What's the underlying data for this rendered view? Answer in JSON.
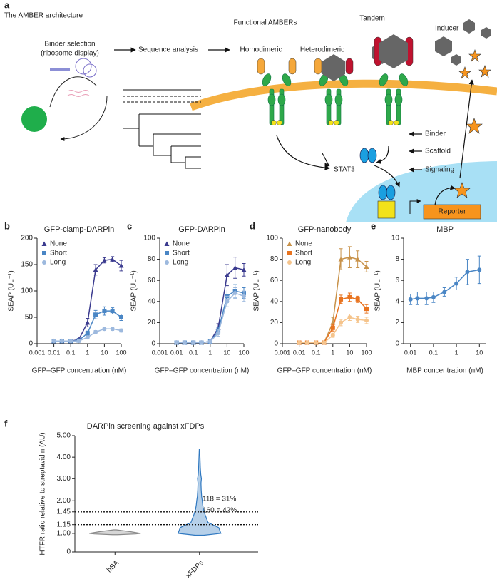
{
  "figure_a": {
    "label": "a",
    "title": "The AMBER architecture",
    "steps": [
      "Binder selection",
      "(ribosome display)",
      "Sequence analysis"
    ],
    "functional": "Functional AMBERs",
    "types": [
      "Homodimeric",
      "Heterodimeric",
      "Tandem"
    ],
    "inducer": "Inducer",
    "parts": [
      "Binder",
      "Scaffold",
      "Signaling"
    ],
    "stat3": "STAT3",
    "reporter": "Reporter"
  },
  "chart_data": [
    {
      "type": "line",
      "panel": "b",
      "title": "GFP-clamp-DARPin",
      "x_label": "GFP–GFP concentration (nM)",
      "y_label": "SEAP (UL⁻¹)",
      "x": [
        0.01,
        0.03,
        0.1,
        0.3,
        1,
        3,
        10,
        30,
        100
      ],
      "xscale": "log",
      "xlim": [
        0.001,
        100
      ],
      "xticks": [
        0.001,
        0.01,
        0.1,
        1,
        10,
        100
      ],
      "ylim": [
        0,
        200
      ],
      "yticks": [
        0,
        50,
        100,
        150,
        200
      ],
      "legend": "upper left",
      "series": [
        {
          "name": "None",
          "color": "#3b3b8f",
          "marker": "triangle",
          "values": [
            5,
            5,
            5,
            8,
            40,
            140,
            158,
            160,
            148
          ],
          "errors": [
            1,
            1,
            1,
            2,
            8,
            10,
            5,
            5,
            10
          ]
        },
        {
          "name": "Short",
          "color": "#4a86c5",
          "marker": "square",
          "values": [
            5,
            5,
            5,
            6,
            20,
            55,
            62,
            62,
            50
          ],
          "errors": [
            1,
            1,
            1,
            1,
            4,
            8,
            8,
            6,
            6
          ]
        },
        {
          "name": "Long",
          "color": "#9db9de",
          "marker": "circle",
          "values": [
            5,
            5,
            5,
            5,
            12,
            22,
            28,
            28,
            25
          ],
          "errors": [
            1,
            1,
            1,
            1,
            2,
            3,
            3,
            3,
            3
          ]
        }
      ]
    },
    {
      "type": "line",
      "panel": "c",
      "title": "GFP-DARPin",
      "x_label": "GFP–GFP concentration (nM)",
      "y_label": "SEAP (UL⁻¹)",
      "x": [
        0.01,
        0.03,
        0.1,
        0.3,
        1,
        3,
        10,
        30,
        100
      ],
      "xscale": "log",
      "xlim": [
        0.001,
        100
      ],
      "xticks": [
        0.001,
        0.01,
        0.1,
        1,
        10,
        100
      ],
      "ylim": [
        0,
        100
      ],
      "yticks": [
        0,
        20,
        40,
        60,
        80,
        100
      ],
      "legend": "upper left",
      "series": [
        {
          "name": "None",
          "color": "#3b3b8f",
          "marker": "triangle",
          "values": [
            1,
            1,
            1,
            1,
            2,
            15,
            65,
            72,
            70
          ],
          "errors": [
            0.5,
            0.5,
            0.5,
            0.5,
            1,
            4,
            10,
            10,
            6
          ]
        },
        {
          "name": "Short",
          "color": "#4a86c5",
          "marker": "square",
          "values": [
            1,
            1,
            1,
            1,
            2,
            12,
            45,
            50,
            48
          ],
          "errors": [
            0.5,
            0.5,
            0.5,
            0.5,
            1,
            3,
            6,
            6,
            5
          ]
        },
        {
          "name": "Long",
          "color": "#9db9de",
          "marker": "circle",
          "values": [
            1,
            1,
            1,
            1,
            2,
            10,
            40,
            48,
            45
          ],
          "errors": [
            0.5,
            0.5,
            0.5,
            0.5,
            1,
            3,
            5,
            5,
            5
          ]
        }
      ]
    },
    {
      "type": "line",
      "panel": "d",
      "title": "GFP-nanobody",
      "x_label": "GFP–GFP concentration (nM)",
      "y_label": "SEAP (UL⁻¹)",
      "x": [
        0.01,
        0.03,
        0.1,
        0.3,
        1,
        3,
        10,
        30,
        100
      ],
      "xscale": "log",
      "xlim": [
        0.001,
        100
      ],
      "xticks": [
        0.001,
        0.01,
        0.1,
        1,
        10,
        100
      ],
      "ylim": [
        0,
        100
      ],
      "yticks": [
        0,
        20,
        40,
        60,
        80,
        100
      ],
      "legend": "upper left",
      "series": [
        {
          "name": "None",
          "color": "#c8924a",
          "marker": "triangle",
          "values": [
            1,
            1,
            1,
            1,
            20,
            80,
            82,
            80,
            73
          ],
          "errors": [
            0.5,
            0.5,
            0.5,
            0.5,
            5,
            10,
            10,
            8,
            5
          ]
        },
        {
          "name": "Short",
          "color": "#e8731f",
          "marker": "square",
          "values": [
            1,
            1,
            1,
            1,
            15,
            42,
            44,
            42,
            33
          ],
          "errors": [
            0.5,
            0.5,
            0.5,
            0.5,
            3,
            4,
            4,
            3,
            4
          ]
        },
        {
          "name": "Long",
          "color": "#f5c48c",
          "marker": "circle",
          "values": [
            1,
            1,
            1,
            1,
            8,
            20,
            25,
            23,
            22
          ],
          "errors": [
            0.5,
            0.5,
            0.5,
            0.5,
            2,
            3,
            3,
            3,
            3
          ]
        }
      ]
    },
    {
      "type": "line",
      "panel": "e",
      "title": "MBP",
      "x_label": "MBP concentration (nM)",
      "y_label": "SEAP (UL⁻¹)",
      "x": [
        0.01,
        0.02,
        0.05,
        0.1,
        0.3,
        1,
        3,
        10
      ],
      "xscale": "log",
      "xlim": [
        0.005,
        20
      ],
      "xticks": [
        0.01,
        0.1,
        1,
        10
      ],
      "ylim": [
        0,
        10
      ],
      "yticks": [
        0,
        2,
        4,
        6,
        8,
        10
      ],
      "series": [
        {
          "color": "#4a86c5",
          "marker": "circle",
          "values": [
            4.2,
            4.3,
            4.3,
            4.4,
            4.9,
            5.7,
            6.8,
            7.0
          ],
          "errors": [
            0.5,
            0.6,
            0.6,
            0.5,
            0.4,
            0.6,
            1.2,
            1.3
          ]
        }
      ]
    },
    {
      "type": "violin",
      "panel": "f",
      "title": "DARPin screening against xFDPs",
      "y_label": "HTFR ratio relative to streptavidin (AU)",
      "categories": [
        "hSA",
        "xFDPs"
      ],
      "ylim": [
        0,
        5
      ],
      "yticks": [
        0,
        {
          "value": 1,
          "label": "1.00"
        },
        {
          "value": 1.15,
          "label": "1.15"
        },
        {
          "value": 1.45,
          "label": "1.45"
        },
        {
          "value": 2,
          "label": "2.00"
        },
        {
          "value": 3,
          "label": "3.00"
        },
        {
          "value": 4,
          "label": "4.00"
        },
        {
          "value": 5,
          "label": "5.00"
        }
      ],
      "reference_lines": [
        1.15,
        1.45
      ],
      "annotations": [
        "118 = 31%",
        "160 = 42%"
      ],
      "violins": [
        {
          "color": "#8a8a8a",
          "y": [
            0.93,
            0.97,
            1.0,
            1.03,
            1.06
          ],
          "density": [
            0.1,
            0.8,
            1,
            0.6,
            0.05
          ]
        },
        {
          "color": "#2f78c0",
          "y": [
            0.9,
            1.0,
            1.1,
            1.2,
            1.4,
            1.6,
            1.8,
            2.0,
            2.2,
            2.5,
            2.8,
            3.0,
            3.2,
            3.5,
            3.8,
            4.1,
            4.35
          ],
          "density": [
            0.2,
            1,
            0.9,
            0.4,
            0.25,
            0.18,
            0.15,
            0.13,
            0.1,
            0.08,
            0.07,
            0.09,
            0.06,
            0.04,
            0.03,
            0.02,
            0.01
          ]
        }
      ]
    }
  ]
}
